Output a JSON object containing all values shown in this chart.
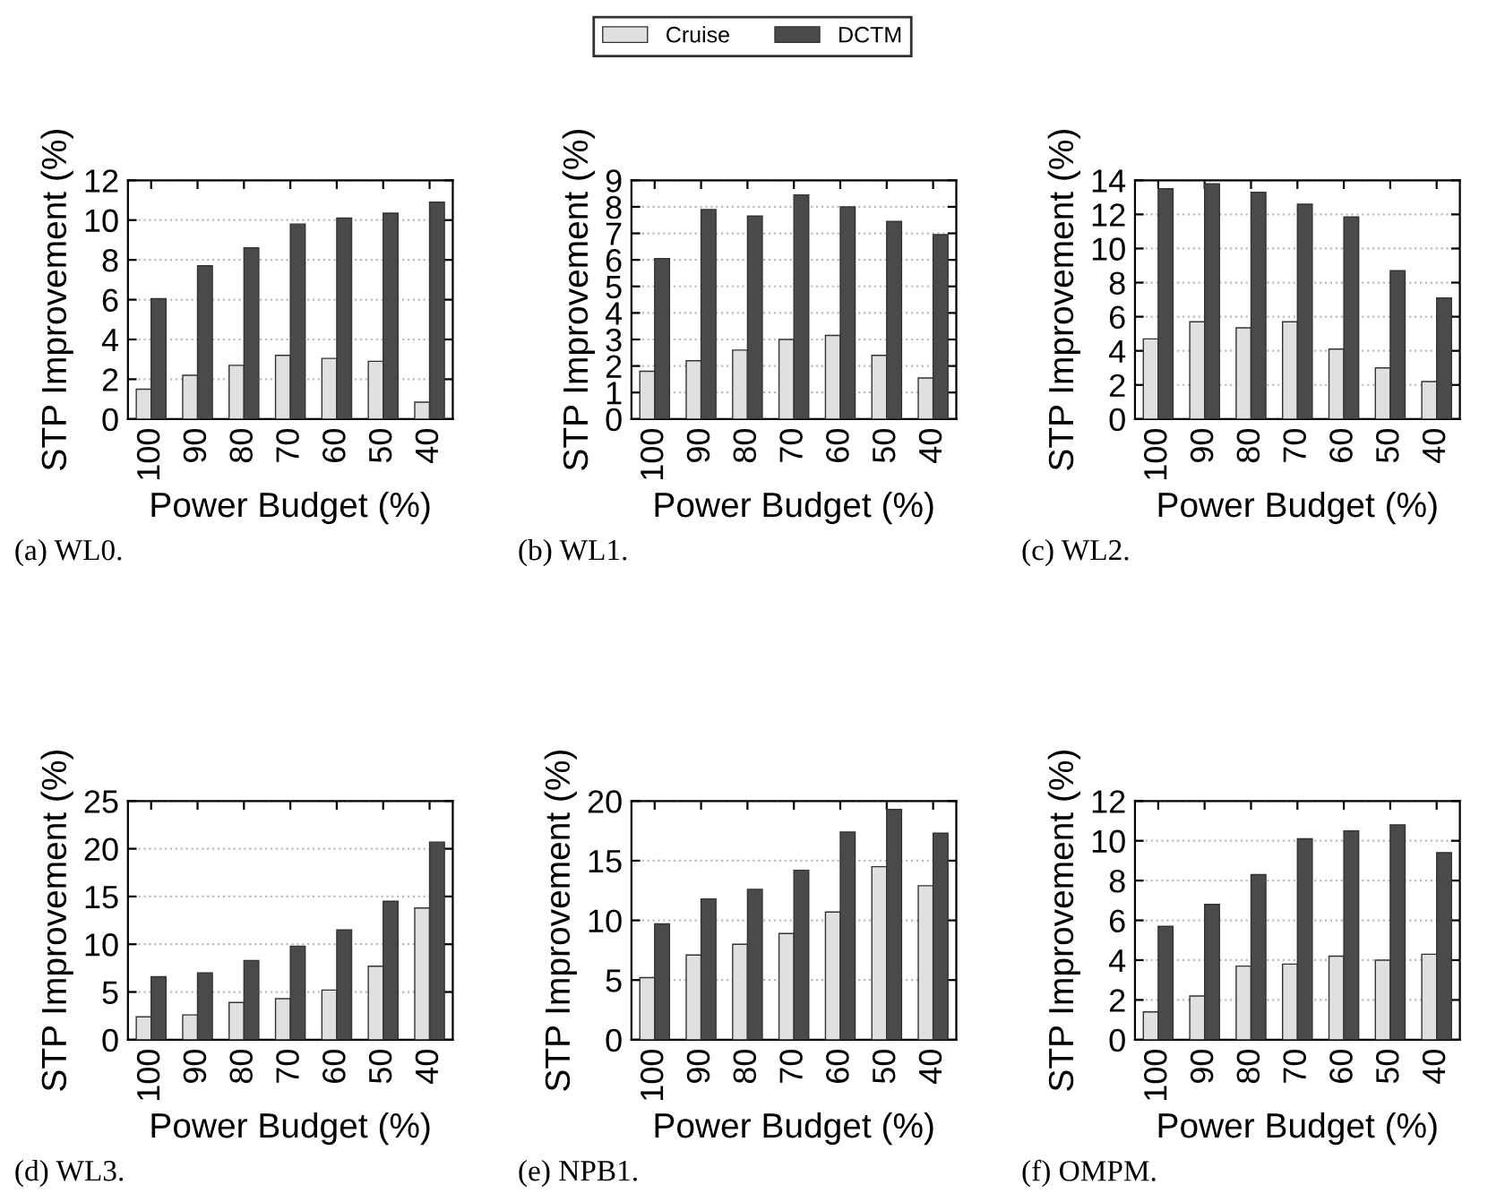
{
  "chart_data": [
    {
      "type": "bar",
      "xlabel": "Power Budget (%)",
      "ylabel": "STP Improvement (%)",
      "categories": [
        "100",
        "90",
        "80",
        "70",
        "60",
        "50",
        "40"
      ],
      "ylim": [
        0,
        12
      ],
      "yticks": [
        0,
        2,
        4,
        6,
        8,
        10,
        12
      ],
      "grid": "y",
      "legend": "top",
      "annotations": [
        "(a) WL0."
      ],
      "series": [
        {
          "name": "Cruise",
          "color": "#e0e0e0",
          "values": [
            1.5,
            2.2,
            2.7,
            3.2,
            3.05,
            2.9,
            0.85
          ]
        },
        {
          "name": "DCTM",
          "color": "#4a4a4a",
          "values": [
            6.05,
            7.7,
            8.6,
            9.8,
            10.1,
            10.35,
            10.9
          ]
        }
      ]
    },
    {
      "type": "bar",
      "xlabel": "Power Budget (%)",
      "ylabel": "STP Improvement (%)",
      "categories": [
        "100",
        "90",
        "80",
        "70",
        "60",
        "50",
        "40"
      ],
      "ylim": [
        0,
        9
      ],
      "yticks": [
        0,
        1,
        2,
        3,
        4,
        5,
        6,
        7,
        8,
        9
      ],
      "grid": "y",
      "annotations": [
        "(b) WL1."
      ],
      "series": [
        {
          "color": "#e0e0e0",
          "values": [
            1.8,
            2.2,
            2.6,
            3.0,
            3.15,
            2.4,
            1.55
          ]
        },
        {
          "color": "#4a4a4a",
          "values": [
            6.05,
            7.9,
            7.65,
            8.45,
            8.0,
            7.45,
            6.95
          ]
        }
      ]
    },
    {
      "type": "bar",
      "xlabel": "Power Budget (%)",
      "ylabel": "STP Improvement (%)",
      "categories": [
        "100",
        "90",
        "80",
        "70",
        "60",
        "50",
        "40"
      ],
      "ylim": [
        0,
        14
      ],
      "yticks": [
        0,
        2,
        4,
        6,
        8,
        10,
        12,
        14
      ],
      "grid": "y",
      "annotations": [
        "(c) WL2."
      ],
      "series": [
        {
          "color": "#e0e0e0",
          "values": [
            4.7,
            5.7,
            5.35,
            5.7,
            4.1,
            3.0,
            2.2
          ]
        },
        {
          "color": "#4a4a4a",
          "values": [
            13.5,
            13.8,
            13.3,
            12.6,
            11.85,
            8.7,
            7.1
          ]
        }
      ]
    },
    {
      "type": "bar",
      "xlabel": "Power Budget (%)",
      "ylabel": "STP Improvement (%)",
      "categories": [
        "100",
        "90",
        "80",
        "70",
        "60",
        "50",
        "40"
      ],
      "ylim": [
        0,
        25
      ],
      "yticks": [
        0,
        5,
        10,
        15,
        20,
        25
      ],
      "grid": "y",
      "annotations": [
        "(d) WL3."
      ],
      "series": [
        {
          "color": "#e0e0e0",
          "values": [
            2.4,
            2.6,
            3.9,
            4.3,
            5.2,
            7.7,
            13.8
          ]
        },
        {
          "color": "#4a4a4a",
          "values": [
            6.6,
            7.0,
            8.3,
            9.8,
            11.5,
            14.5,
            20.7
          ]
        }
      ]
    },
    {
      "type": "bar",
      "xlabel": "Power Budget (%)",
      "ylabel": "STP Improvement (%)",
      "categories": [
        "100",
        "90",
        "80",
        "70",
        "60",
        "50",
        "40"
      ],
      "ylim": [
        0,
        20
      ],
      "yticks": [
        0,
        5,
        10,
        15,
        20
      ],
      "grid": "y",
      "annotations": [
        "(e) NPB1."
      ],
      "series": [
        {
          "color": "#e0e0e0",
          "values": [
            5.2,
            7.1,
            8.0,
            8.9,
            10.7,
            14.5,
            12.9
          ]
        },
        {
          "color": "#4a4a4a",
          "values": [
            9.7,
            11.8,
            12.6,
            14.2,
            17.4,
            19.3,
            17.3
          ]
        }
      ]
    },
    {
      "type": "bar",
      "xlabel": "Power Budget (%)",
      "ylabel": "STP Improvement (%)",
      "categories": [
        "100",
        "90",
        "80",
        "70",
        "60",
        "50",
        "40"
      ],
      "ylim": [
        0,
        12
      ],
      "yticks": [
        0,
        2,
        4,
        6,
        8,
        10,
        12
      ],
      "grid": "y",
      "annotations": [
        "(f) OMPM."
      ],
      "series": [
        {
          "color": "#e0e0e0",
          "values": [
            1.4,
            2.2,
            3.7,
            3.8,
            4.2,
            4.0,
            4.3
          ]
        },
        {
          "color": "#4a4a4a",
          "values": [
            5.7,
            6.8,
            8.3,
            10.1,
            10.5,
            10.8,
            9.4
          ]
        }
      ]
    }
  ]
}
